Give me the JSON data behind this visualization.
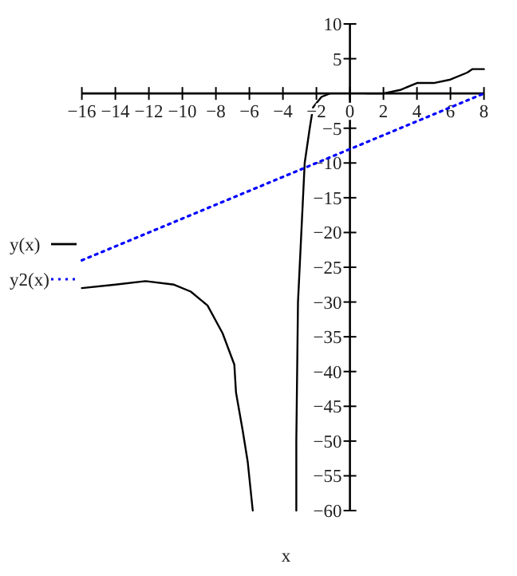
{
  "chart_data": {
    "type": "line",
    "xlabel": "x",
    "xlim": [
      -16,
      8
    ],
    "ylim": [
      -60,
      10
    ],
    "xticks": [
      -16,
      -14,
      -12,
      -10,
      -8,
      -6,
      -4,
      -2,
      0,
      2,
      4,
      6,
      8
    ],
    "yticks": [
      10,
      5,
      -5,
      -10,
      -15,
      -20,
      -25,
      -30,
      -35,
      -40,
      -45,
      -50,
      -55,
      -60
    ],
    "grid": false,
    "legend": "left",
    "marker": "none",
    "series": [
      {
        "name": "y(x)",
        "color": "#000000",
        "line_style": "solid",
        "x": [
          -16,
          -14,
          -12.2,
          -10.5,
          -9.5,
          -8.5,
          -7.6,
          -6.9,
          -6.8,
          -6.4,
          -6.1,
          -5.8,
          null,
          -3.2,
          -3.2,
          -3.1,
          -2.9,
          -2.7,
          -2.4,
          -2.2,
          -1.7,
          -1.2,
          null,
          1,
          2,
          3,
          4,
          5,
          6,
          7,
          7.3,
          8
        ],
        "values": [
          -28,
          -27.5,
          -27,
          -27.5,
          -28.5,
          -30.5,
          -34.5,
          -39,
          -43,
          -48.5,
          -53,
          -60,
          null,
          -60,
          -50,
          -30,
          -20,
          -10,
          -5,
          -2,
          -0.5,
          0,
          null,
          0,
          0,
          0.5,
          1.5,
          1.5,
          2,
          3,
          3.5,
          3.5
        ]
      },
      {
        "name": "y2(x)",
        "color": "#0000ff",
        "line_style": "dotted",
        "x": [
          -16,
          0,
          8
        ],
        "values": [
          -24,
          -8,
          0
        ]
      }
    ]
  }
}
